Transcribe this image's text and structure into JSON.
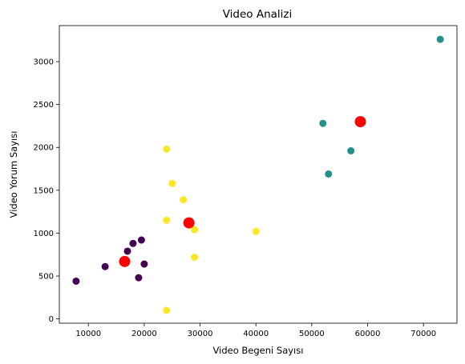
{
  "chart_data": {
    "type": "scatter",
    "title": "Video Analizi",
    "xlabel": "Video Begeni Sayısı",
    "ylabel": "Video Yorum Sayısı",
    "xlim": [
      4800,
      76000
    ],
    "ylim": [
      -50,
      3420
    ],
    "xticks": [
      10000,
      20000,
      30000,
      40000,
      50000,
      60000,
      70000
    ],
    "yticks": [
      0,
      500,
      1000,
      1500,
      2000,
      2500,
      3000
    ],
    "grid": false,
    "legend": "none",
    "clusters": [
      {
        "color": "#440154",
        "points": [
          [
            7800,
            440
          ],
          [
            13000,
            610
          ],
          [
            17000,
            790
          ],
          [
            18000,
            880
          ],
          [
            19500,
            920
          ],
          [
            19000,
            480
          ],
          [
            20000,
            640
          ]
        ]
      },
      {
        "color": "#21918c",
        "points": [
          [
            52000,
            2280
          ],
          [
            57000,
            1960
          ],
          [
            53000,
            1690
          ],
          [
            73000,
            3260
          ]
        ]
      },
      {
        "color": "#fde725",
        "points": [
          [
            24000,
            1980
          ],
          [
            25000,
            1580
          ],
          [
            27000,
            1390
          ],
          [
            24000,
            1150
          ],
          [
            29000,
            1040
          ],
          [
            40000,
            1020
          ],
          [
            29000,
            720
          ],
          [
            24000,
            100
          ]
        ]
      }
    ],
    "centroids": {
      "color": "#ff0000",
      "points": [
        [
          16500,
          670
        ],
        [
          28000,
          1120
        ],
        [
          58700,
          2300
        ]
      ]
    }
  }
}
